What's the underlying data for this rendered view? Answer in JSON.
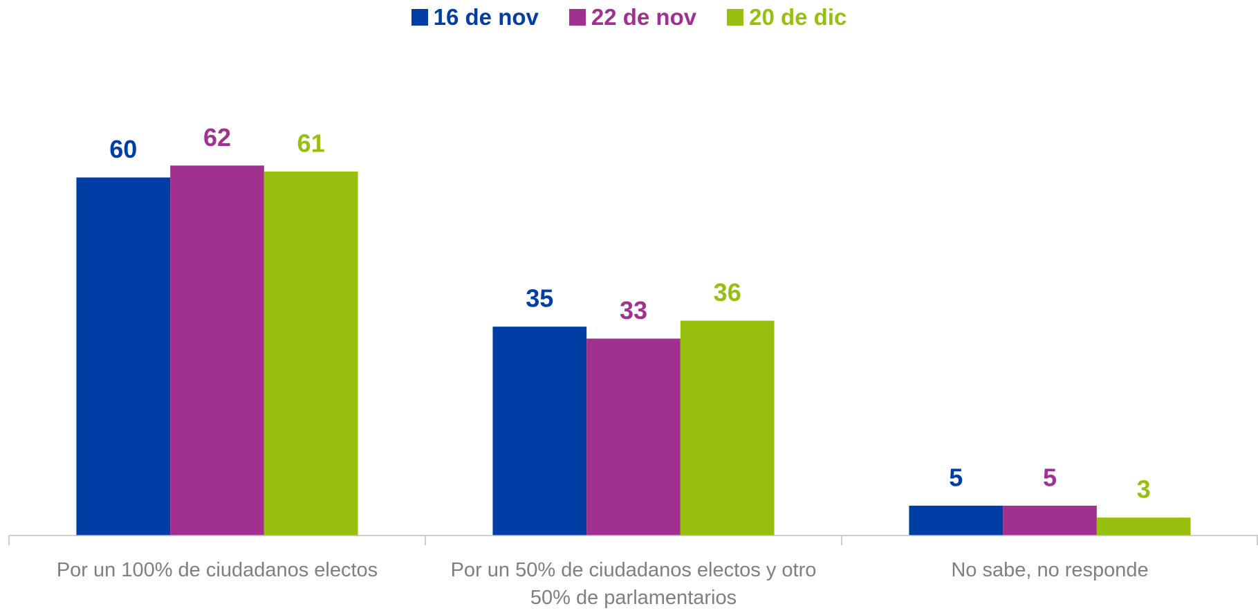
{
  "chart_data": {
    "type": "bar",
    "categories": [
      "Por un 100% de ciudadanos electos",
      "Por un 50% de ciudadanos electos y otro 50% de parlamentarios",
      "No sabe, no responde"
    ],
    "series": [
      {
        "name": "16 de nov",
        "color": "#003da5",
        "values": [
          60,
          35,
          5
        ]
      },
      {
        "name": "22 de nov",
        "color": "#a03190",
        "values": [
          62,
          33,
          5
        ]
      },
      {
        "name": "20 de dic",
        "color": "#97bf0d",
        "values": [
          61,
          36,
          3
        ]
      }
    ],
    "ylim": [
      0,
      80
    ],
    "legend": "top"
  }
}
